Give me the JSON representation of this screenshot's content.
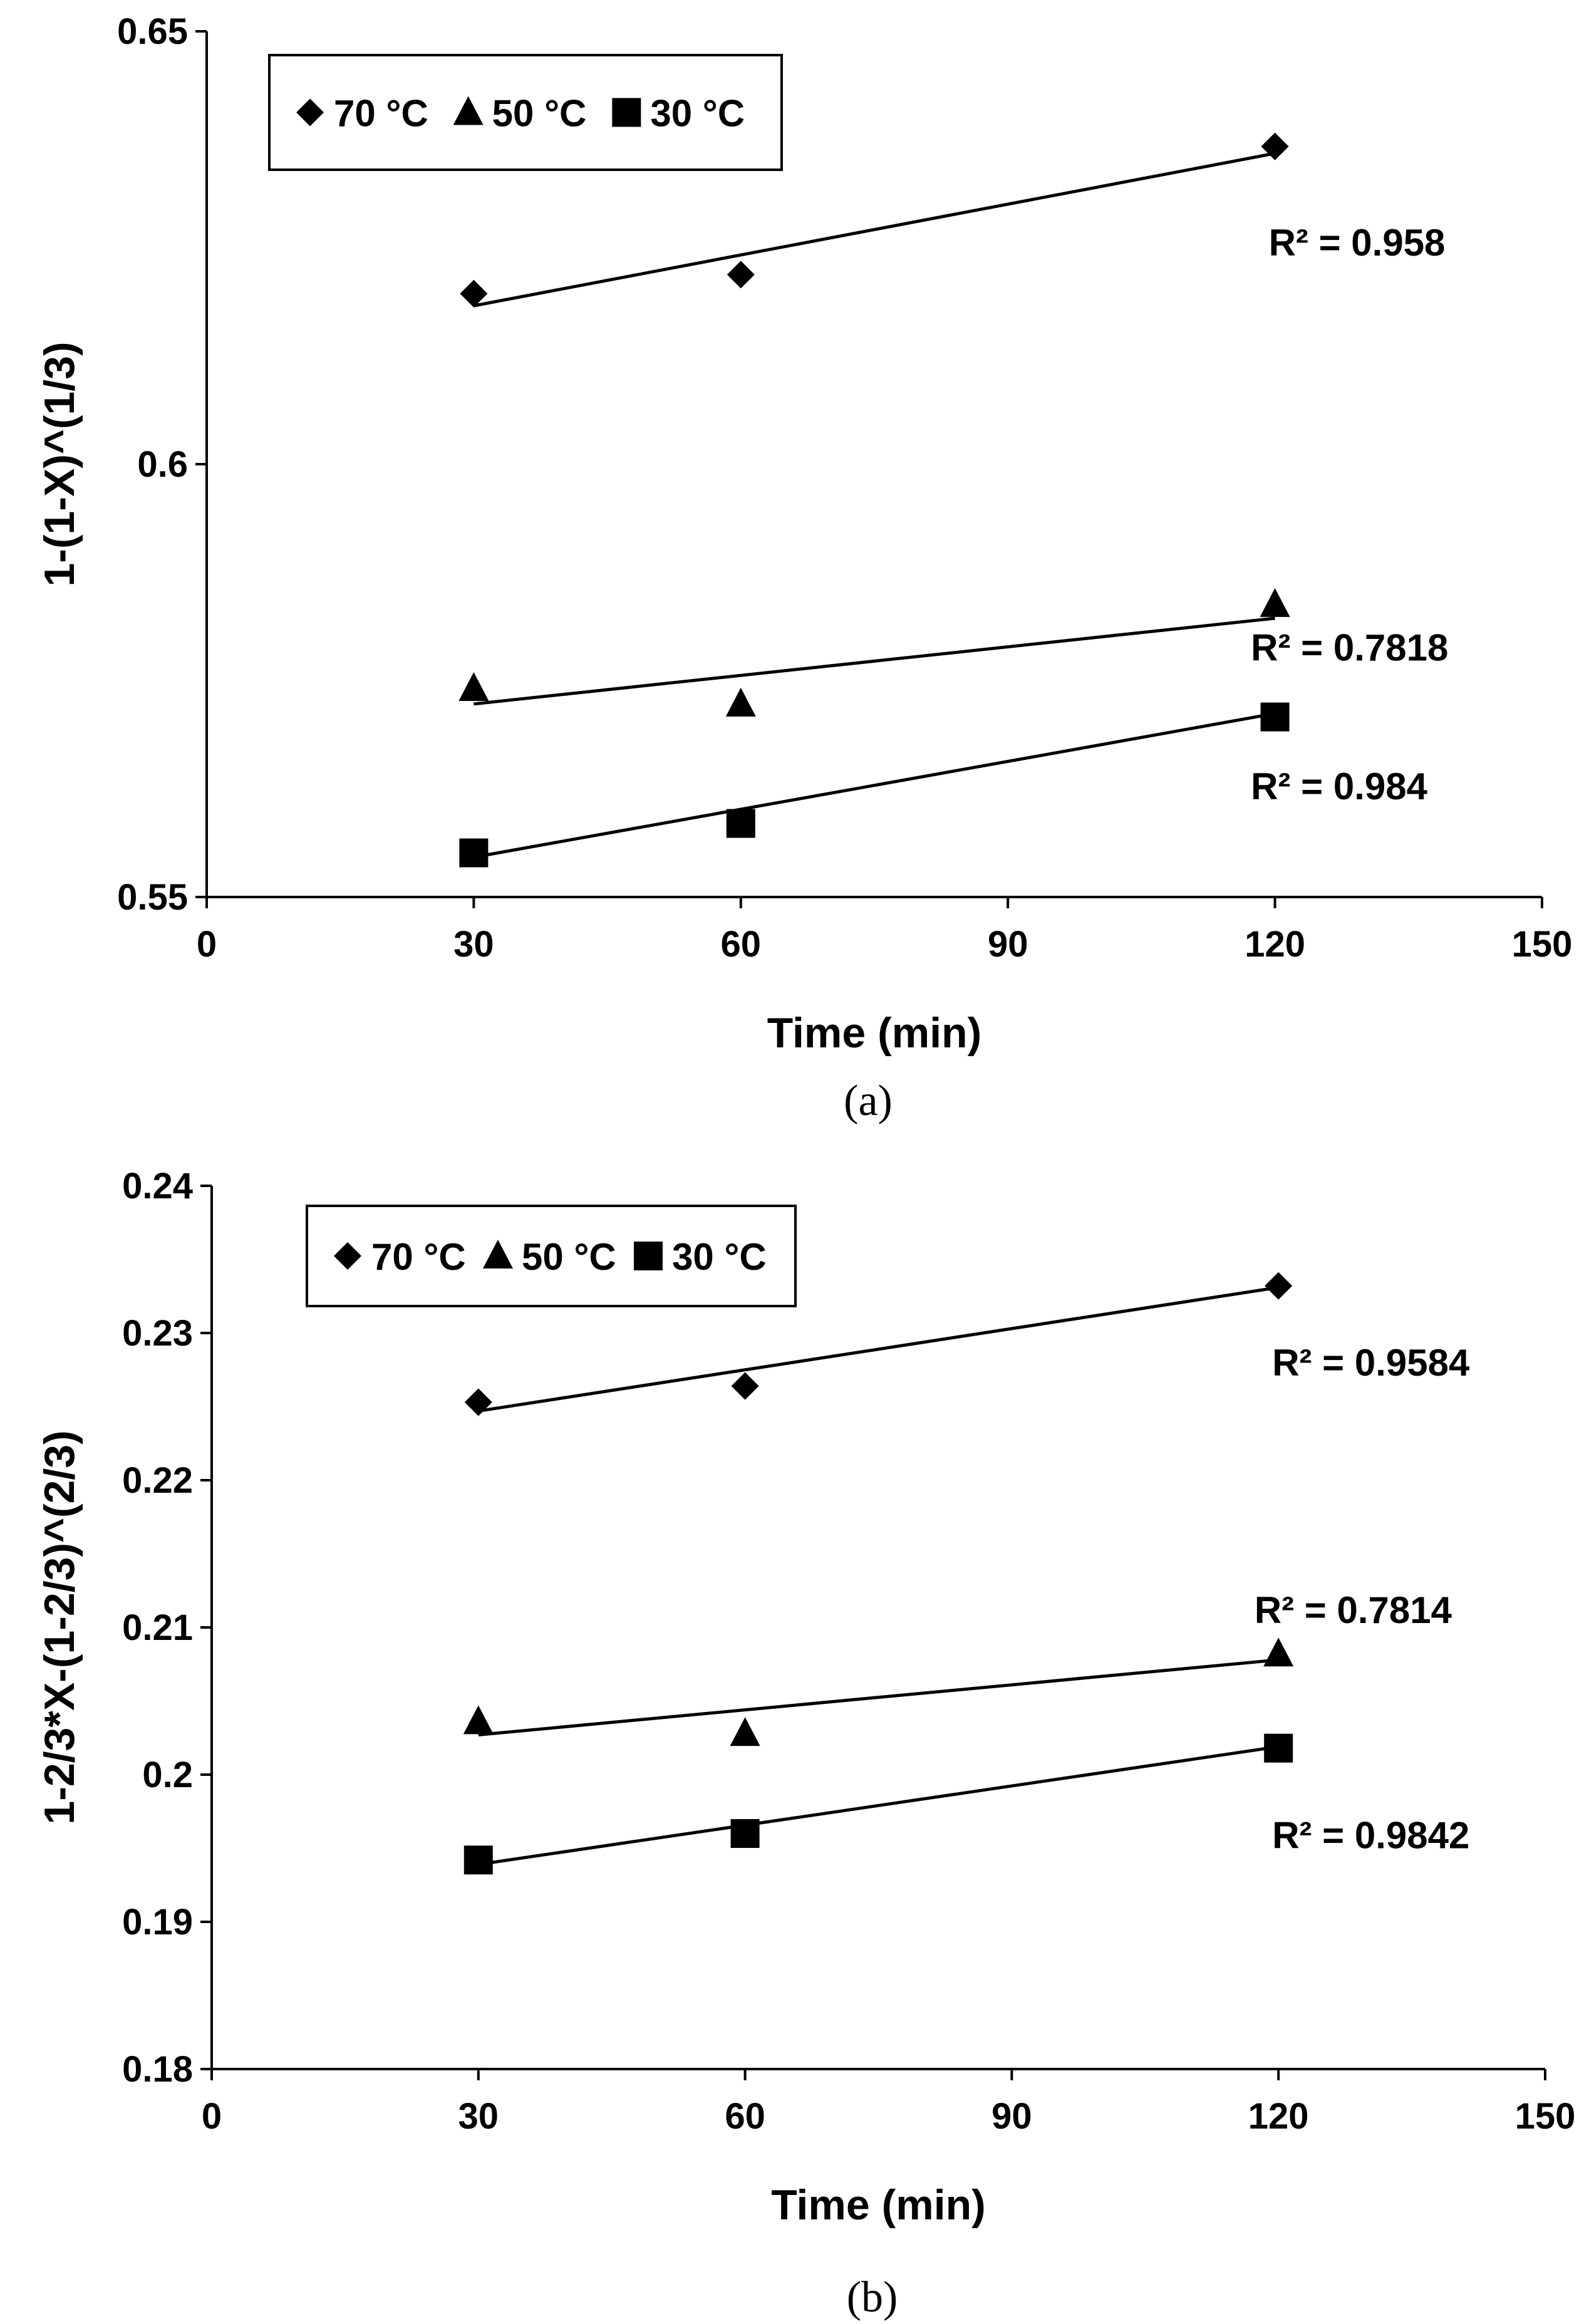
{
  "chart_data": [
    {
      "type": "scatter",
      "panel_caption": "(a)",
      "xlabel": "Time (min)",
      "ylabel": "1-(1-X)^(1/3)",
      "xlim": [
        0,
        150
      ],
      "ylim": [
        0.55,
        0.65
      ],
      "xticks": [
        0,
        30,
        60,
        90,
        120,
        150
      ],
      "xtick_labels": [
        "0",
        "30",
        "60",
        "90",
        "120",
        "150"
      ],
      "yticks": [
        0.55,
        0.6,
        0.65
      ],
      "ytick_labels": [
        "0.55",
        "0.6",
        "0.65"
      ],
      "legend": {
        "position": "top-left",
        "entries": [
          "70 °C",
          "50 °C",
          "30 °C"
        ]
      },
      "series": [
        {
          "name": "70 °C",
          "marker": "diamond",
          "x": [
            30,
            60,
            120
          ],
          "y": [
            0.6197,
            0.6219,
            0.6367
          ],
          "trendline": {
            "x": [
              30,
              120
            ],
            "y": [
              0.6183,
              0.6359
            ]
          },
          "r2_label": "R² = 0.958",
          "r2_anchor": [
            120,
            0.6241
          ]
        },
        {
          "name": "50 °C",
          "marker": "triangle",
          "x": [
            30,
            60,
            120
          ],
          "y": [
            0.5741,
            0.5723,
            0.5838
          ],
          "trendline": {
            "x": [
              30,
              120
            ],
            "y": [
              0.5723,
              0.5822
            ]
          },
          "r2_label": "R² = 0.7818",
          "r2_anchor": [
            118,
            0.5773
          ]
        },
        {
          "name": "30 °C",
          "marker": "square",
          "x": [
            30,
            60,
            120
          ],
          "y": [
            0.5551,
            0.5585,
            0.5708
          ],
          "trendline": {
            "x": [
              30,
              120
            ],
            "y": [
              0.5546,
              0.5712
            ]
          },
          "r2_label": "R² = 0.984",
          "r2_anchor": [
            118,
            0.5613
          ]
        }
      ]
    },
    {
      "type": "scatter",
      "panel_caption": "(b)",
      "xlabel": "Time (min)",
      "ylabel": "1-2/3*X-(1-2/3)^(2/3)",
      "xlim": [
        0,
        150
      ],
      "ylim": [
        0.18,
        0.24
      ],
      "xticks": [
        0,
        30,
        60,
        90,
        120,
        150
      ],
      "xtick_labels": [
        "0",
        "30",
        "60",
        "90",
        "120",
        "150"
      ],
      "yticks": [
        0.18,
        0.19,
        0.2,
        0.21,
        0.22,
        0.23,
        0.24
      ],
      "ytick_labels": [
        "0.18",
        "0.19",
        "0.2",
        "0.21",
        "0.22",
        "0.23",
        "0.24"
      ],
      "legend": {
        "position": "top-left",
        "entries": [
          "70 °C",
          "50 °C",
          "30 °C"
        ]
      },
      "series": [
        {
          "name": "70 °C",
          "marker": "diamond",
          "x": [
            30,
            60,
            120
          ],
          "y": [
            0.2253,
            0.2264,
            0.2332
          ],
          "trendline": {
            "x": [
              30,
              120
            ],
            "y": [
              0.2247,
              0.2331
            ]
          },
          "r2_label": "R² = 0.9584",
          "r2_anchor": [
            120,
            0.2271
          ]
        },
        {
          "name": "50 °C",
          "marker": "triangle",
          "x": [
            30,
            60,
            120
          ],
          "y": [
            0.2036,
            0.2028,
            0.2082
          ],
          "trendline": {
            "x": [
              30,
              120
            ],
            "y": [
              0.2027,
              0.2078
            ]
          },
          "r2_label": "R² = 0.7814",
          "r2_anchor": [
            118,
            0.2103
          ]
        },
        {
          "name": "30 °C",
          "marker": "square",
          "x": [
            30,
            60,
            120
          ],
          "y": [
            0.1942,
            0.196,
            0.2018
          ],
          "trendline": {
            "x": [
              30,
              120
            ],
            "y": [
              0.1939,
              0.2019
            ]
          },
          "r2_label": "R² = 0.9842",
          "r2_anchor": [
            120,
            0.195
          ]
        }
      ]
    }
  ]
}
